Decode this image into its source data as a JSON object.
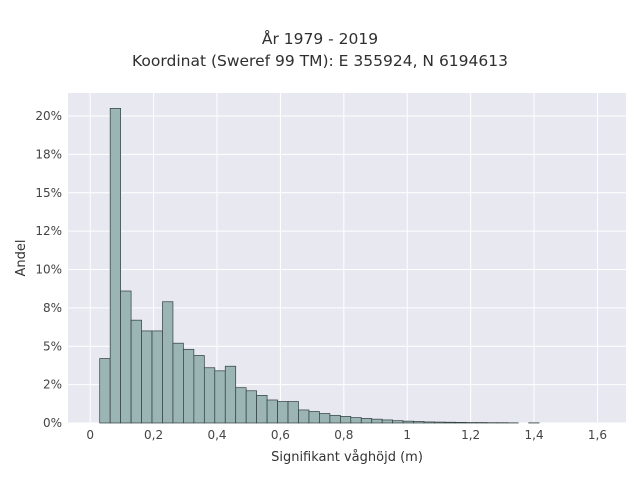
{
  "chart_data": {
    "type": "bar",
    "title_line1": "År 1979 - 2019",
    "title_line2": "Koordinat (Sweref 99 TM): E 355924, N 6194613",
    "xlabel": "Signifikant våghöjd (m)",
    "ylabel": "Andel",
    "xlim": [
      -0.07,
      1.69
    ],
    "ylim": [
      0,
      0.215
    ],
    "grid": true,
    "bin_width": 0.033,
    "x_ticks": [
      {
        "value": 0,
        "label": "0"
      },
      {
        "value": 0.2,
        "label": "0,2"
      },
      {
        "value": 0.4,
        "label": "0,4"
      },
      {
        "value": 0.6,
        "label": "0,6"
      },
      {
        "value": 0.8,
        "label": "0,8"
      },
      {
        "value": 1.0,
        "label": "1"
      },
      {
        "value": 1.2,
        "label": "1,2"
      },
      {
        "value": 1.4,
        "label": "1,4"
      },
      {
        "value": 1.6,
        "label": "1,6"
      }
    ],
    "y_ticks": [
      {
        "value": 0,
        "label": "0%"
      },
      {
        "value": 0.025,
        "label": "2%"
      },
      {
        "value": 0.05,
        "label": "5%"
      },
      {
        "value": 0.075,
        "label": "8%"
      },
      {
        "value": 0.1,
        "label": "10%"
      },
      {
        "value": 0.125,
        "label": "12%"
      },
      {
        "value": 0.15,
        "label": "15%"
      },
      {
        "value": 0.175,
        "label": "18%"
      },
      {
        "value": 0.2,
        "label": "20%"
      }
    ],
    "bins_start": [
      0.03,
      0.063,
      0.096,
      0.129,
      0.162,
      0.195,
      0.228,
      0.261,
      0.294,
      0.327,
      0.36,
      0.393,
      0.426,
      0.459,
      0.492,
      0.525,
      0.558,
      0.591,
      0.624,
      0.657,
      0.69,
      0.723,
      0.756,
      0.789,
      0.822,
      0.855,
      0.888,
      0.921,
      0.954,
      0.987,
      1.02,
      1.053,
      1.086,
      1.119,
      1.152,
      1.185,
      1.218,
      1.251,
      1.284,
      1.317,
      1.383
    ],
    "values": [
      0.042,
      0.205,
      0.086,
      0.067,
      0.06,
      0.06,
      0.079,
      0.052,
      0.048,
      0.044,
      0.036,
      0.034,
      0.037,
      0.023,
      0.021,
      0.018,
      0.015,
      0.014,
      0.014,
      0.0085,
      0.0075,
      0.0062,
      0.005,
      0.0043,
      0.0035,
      0.003,
      0.0025,
      0.002,
      0.0015,
      0.0012,
      0.001,
      0.0007,
      0.0006,
      0.0005,
      0.0004,
      0.0003,
      0.0003,
      0.0002,
      0.0002,
      0.0001,
      0.0001
    ],
    "colors": {
      "bar_fill": "#9bb4b4",
      "bar_stroke": "#2f3e3e",
      "plot_bg": "#e8e8f1",
      "grid": "#ffffff"
    }
  }
}
